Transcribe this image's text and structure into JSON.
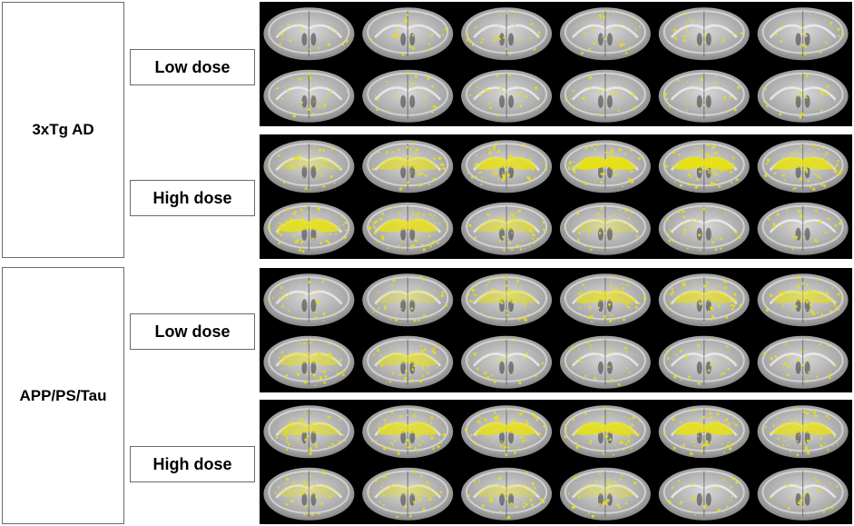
{
  "groups": [
    {
      "label": "3xTg AD",
      "doses": [
        {
          "label": "Low dose",
          "intensity": [
            [
              0.05,
              0.1,
              0.15,
              0.15,
              0.1,
              0.1
            ],
            [
              0.15,
              0.1,
              0.05,
              0.05,
              0.05,
              0.05
            ]
          ]
        },
        {
          "label": "High dose",
          "intensity": [
            [
              0.3,
              0.6,
              0.8,
              0.95,
              0.95,
              0.85
            ],
            [
              0.85,
              0.8,
              0.5,
              0.3,
              0.2,
              0.15
            ]
          ]
        }
      ]
    },
    {
      "label": "APP/PS/Tau",
      "doses": [
        {
          "label": "Low dose",
          "intensity": [
            [
              0.15,
              0.3,
              0.5,
              0.6,
              0.6,
              0.55
            ],
            [
              0.5,
              0.55,
              0.2,
              0.15,
              0.1,
              0.1
            ]
          ]
        },
        {
          "label": "High dose",
          "intensity": [
            [
              0.55,
              0.75,
              0.8,
              0.85,
              0.85,
              0.75
            ],
            [
              0.3,
              0.35,
              0.35,
              0.3,
              0.1,
              0.05
            ]
          ]
        }
      ]
    }
  ],
  "colors": {
    "activation": "#e8e010",
    "background": "#000000",
    "tissue": "#b8b8b8"
  }
}
